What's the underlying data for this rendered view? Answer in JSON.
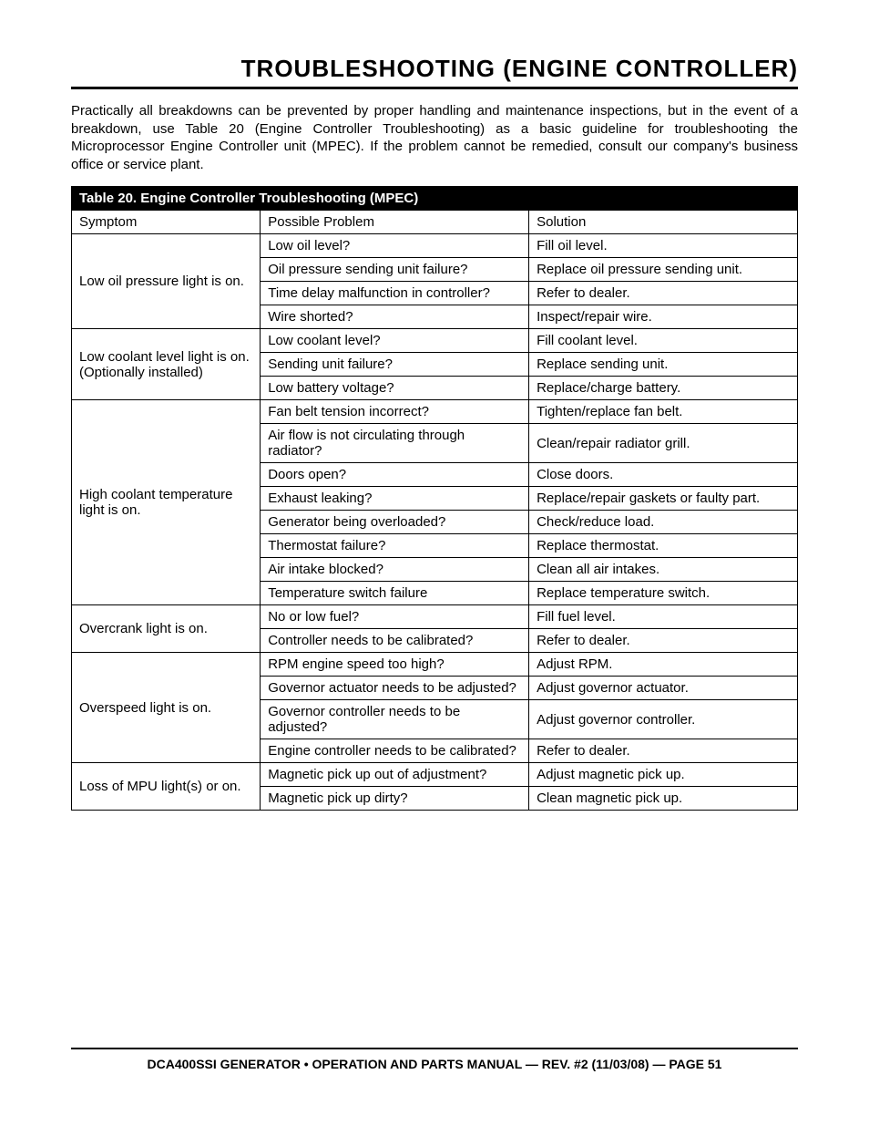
{
  "title": "TROUBLESHOOTING (ENGINE CONTROLLER)",
  "intro": "Practically all breakdowns can be prevented by proper handling and maintenance inspections, but in the event of a breakdown, use Table 20 (Engine Controller Troubleshooting) as a basic guideline for troubleshooting the Microprocessor Engine Controller unit (MPEC). If the problem cannot be remedied, consult our company's business office or service plant.",
  "table": {
    "caption": "Table 20. Engine Controller Troubleshooting (MPEC)",
    "headers": {
      "symptom": "Symptom",
      "problem": "Possible Problem",
      "solution": "Solution"
    },
    "groups": [
      {
        "symptom": "Low oil pressure light is on.",
        "rows": [
          {
            "problem": "Low oil level?",
            "solution": "Fill oil level."
          },
          {
            "problem": "Oil pressure sending unit failure?",
            "solution": "Replace oil pressure sending unit."
          },
          {
            "problem": "Time delay malfunction in controller?",
            "solution": "Refer to dealer."
          },
          {
            "problem": "Wire shorted?",
            "solution": "Inspect/repair wire."
          }
        ]
      },
      {
        "symptom": "Low coolant level light is on. (Optionally installed)",
        "rows": [
          {
            "problem": "Low coolant level?",
            "solution": "Fill coolant level."
          },
          {
            "problem": "Sending unit failure?",
            "solution": "Replace sending unit."
          },
          {
            "problem": "Low battery voltage?",
            "solution": "Replace/charge battery."
          }
        ]
      },
      {
        "symptom": "High coolant temperature light is on.",
        "rows": [
          {
            "problem": "Fan belt tension incorrect?",
            "solution": "Tighten/replace fan belt."
          },
          {
            "problem": "Air flow is not circulating through radiator?",
            "solution": "Clean/repair radiator grill."
          },
          {
            "problem": "Doors open?",
            "solution": "Close doors."
          },
          {
            "problem": "Exhaust leaking?",
            "solution": "Replace/repair gaskets or faulty part."
          },
          {
            "problem": "Generator being overloaded?",
            "solution": "Check/reduce load."
          },
          {
            "problem": "Thermostat failure?",
            "solution": "Replace thermostat."
          },
          {
            "problem": "Air intake blocked?",
            "solution": "Clean all air intakes."
          },
          {
            "problem": "Temperature switch failure",
            "solution": "Replace temperature switch."
          }
        ]
      },
      {
        "symptom": "Overcrank light is on.",
        "rows": [
          {
            "problem": "No or low fuel?",
            "solution": "Fill fuel level."
          },
          {
            "problem": "Controller needs to be calibrated?",
            "solution": "Refer to dealer."
          }
        ]
      },
      {
        "symptom": "Overspeed light is on.",
        "rows": [
          {
            "problem": "RPM engine speed too high?",
            "solution": "Adjust RPM."
          },
          {
            "problem": "Governor actuator needs to be adjusted?",
            "solution": "Adjust governor actuator."
          },
          {
            "problem": "Governor controller needs to be adjusted?",
            "solution": "Adjust governor controller."
          },
          {
            "problem": "Engine controller needs to be calibrated?",
            "solution": "Refer to dealer."
          }
        ]
      },
      {
        "symptom": "Loss of MPU light(s) or on.",
        "rows": [
          {
            "problem": "Magnetic pick up out of adjustment?",
            "solution": "Adjust magnetic pick up."
          },
          {
            "problem": "Magnetic pick up dirty?",
            "solution": "Clean magnetic pick up."
          }
        ]
      }
    ]
  },
  "footer": "DCA400SSI GENERATOR • OPERATION AND PARTS MANUAL — REV. #2 (11/03/08) — PAGE 51"
}
